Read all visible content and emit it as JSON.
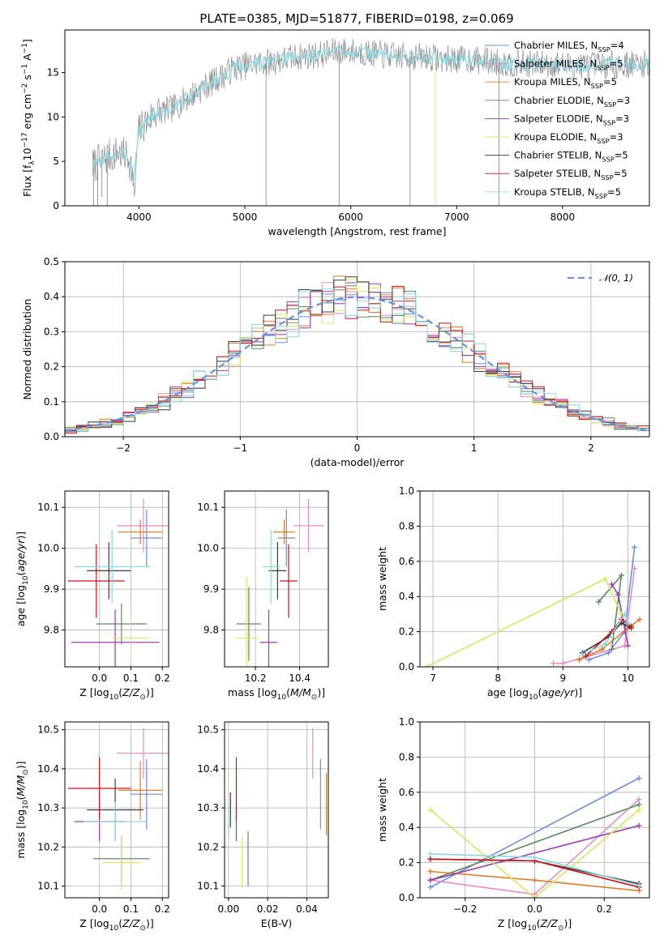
{
  "title": "PLATE=0385, MJD=51877, FIBERID=0198, z=0.069",
  "colors": {
    "blue": "#6a8fdc",
    "orange": "#e07b2a",
    "green": "#5a8a5e",
    "purple": "#9b3bb0",
    "yellow": "#d4e860",
    "black": "#3a3a3a",
    "red": "#c8141e",
    "cyan": "#8cd8e0",
    "pink": "#e88cc4",
    "spec": "#7f7f7f",
    "grid": "#b0b0b0"
  },
  "models": [
    {
      "name": "Chabrier MILES",
      "n": "4",
      "color": "blue"
    },
    {
      "name": "Salpeter MILES",
      "n": "5",
      "color": "pink"
    },
    {
      "name": "Kroupa MILES",
      "n": "5",
      "color": "orange"
    },
    {
      "name": "Chabrier ELODIE",
      "n": "3",
      "color": "green"
    },
    {
      "name": "Salpeter ELODIE",
      "n": "3",
      "color": "purple"
    },
    {
      "name": "Kroupa ELODIE",
      "n": "3",
      "color": "yellow"
    },
    {
      "name": "Chabrier STELIB",
      "n": "5",
      "color": "black"
    },
    {
      "name": "Salpeter STELIB",
      "n": "5",
      "color": "red"
    },
    {
      "name": "Kroupa STELIB",
      "n": "5",
      "color": "cyan"
    }
  ],
  "legend_sub": "SSP",
  "legend_prefix": "N",
  "chart_data": [
    {
      "id": "spectrum",
      "type": "line",
      "xlabel": "wavelength [Angstrom, rest frame]",
      "ylabel": "Flux [f_λ 10^-17 erg cm^-2 s^-1 A^-1]",
      "xlim": [
        3300,
        8820
      ],
      "ylim": [
        0,
        19.8
      ],
      "xticks": [
        4000,
        5000,
        6000,
        7000,
        8000
      ],
      "yticks": [
        0,
        5,
        10,
        15
      ],
      "grid": false,
      "legend": "right",
      "continuum": [
        [
          3560,
          4.5
        ],
        [
          3700,
          5.5
        ],
        [
          3800,
          6.0
        ],
        [
          3900,
          5.5
        ],
        [
          3950,
          3.5
        ],
        [
          4000,
          8.5
        ],
        [
          4150,
          10.5
        ],
        [
          4300,
          10.8
        ],
        [
          4500,
          12.5
        ],
        [
          4700,
          14.0
        ],
        [
          4900,
          15.5
        ],
        [
          5100,
          16.0
        ],
        [
          5300,
          16.3
        ],
        [
          5500,
          16.8
        ],
        [
          5700,
          17.0
        ],
        [
          5900,
          17.5
        ],
        [
          6100,
          17.3
        ],
        [
          6300,
          17.0
        ],
        [
          6500,
          16.8
        ],
        [
          6700,
          16.8
        ],
        [
          6900,
          16.5
        ],
        [
          7100,
          16.5
        ],
        [
          7300,
          16.3
        ],
        [
          7500,
          16.0
        ],
        [
          7700,
          16.0
        ],
        [
          7900,
          15.9
        ],
        [
          8100,
          15.8
        ],
        [
          8300,
          15.8
        ],
        [
          8500,
          15.9
        ],
        [
          8800,
          16.0
        ]
      ]
    },
    {
      "id": "residuals",
      "type": "line",
      "xlabel": "(data-model)/error",
      "ylabel": "Normed distribution",
      "xlim": [
        -2.5,
        2.5
      ],
      "ylim": [
        0,
        0.5
      ],
      "xticks": [
        -2,
        -1,
        0,
        1,
        2
      ],
      "yticks": [
        0.0,
        0.1,
        0.2,
        0.3,
        0.4,
        0.5
      ],
      "grid": true,
      "legend": "top-right",
      "reference_label": "𝒩(0, 1)",
      "reference": "normal",
      "bin_width": 0.1
    },
    {
      "id": "age_vs_Z",
      "type": "scatter",
      "xlabel": "Z [log10(Z/Z_⊙)]",
      "ylabel": "age [log10(age/yr)]",
      "xlim": [
        -0.11,
        0.22
      ],
      "ylim": [
        9.71,
        10.14
      ],
      "xticks": [
        0.0,
        0.1,
        0.2
      ],
      "yticks": [
        9.8,
        9.9,
        10.0,
        10.1
      ],
      "grid": true,
      "points": [
        {
          "color": "blue",
          "x": 0.15,
          "y": 10.025,
          "ex": 0.05,
          "ey": 0.07
        },
        {
          "color": "pink",
          "x": 0.14,
          "y": 10.055,
          "ex": 0.085,
          "ey": 0.065
        },
        {
          "color": "orange",
          "x": 0.13,
          "y": 10.04,
          "ex": 0.07,
          "ey": 0.03
        },
        {
          "color": "green",
          "x": 0.07,
          "y": 9.815,
          "ex": 0.08,
          "ey": 0.05
        },
        {
          "color": "purple",
          "x": 0.05,
          "y": 9.77,
          "ex": 0.14,
          "ey": 0.08
        },
        {
          "color": "yellow",
          "x": 0.1,
          "y": 9.78,
          "ex": 0.06,
          "ey": 0.06
        },
        {
          "color": "black",
          "x": 0.03,
          "y": 9.945,
          "ex": 0.07,
          "ey": 0.07
        },
        {
          "color": "red",
          "x": -0.01,
          "y": 9.92,
          "ex": 0.09,
          "ey": 0.09
        },
        {
          "color": "cyan",
          "x": 0.04,
          "y": 9.955,
          "ex": 0.12,
          "ey": 0.09
        }
      ]
    },
    {
      "id": "age_vs_mass",
      "type": "scatter",
      "xlabel": "mass [log10(M/M_⊙)]",
      "ylabel": "",
      "xlim": [
        10.06,
        10.53
      ],
      "ylim": [
        9.71,
        10.14
      ],
      "xticks": [
        10.2,
        10.4
      ],
      "yticks": [
        9.8,
        9.9,
        10.0,
        10.1
      ],
      "grid": true,
      "points": [
        {
          "color": "blue",
          "x": 10.34,
          "y": 10.025,
          "ex": 0.04,
          "ey": 0.07
        },
        {
          "color": "pink",
          "x": 10.44,
          "y": 10.055,
          "ex": 0.07,
          "ey": 0.065
        },
        {
          "color": "orange",
          "x": 10.33,
          "y": 10.04,
          "ex": 0.05,
          "ey": 0.03
        },
        {
          "color": "green",
          "x": 10.17,
          "y": 9.815,
          "ex": 0.055,
          "ey": 0.09
        },
        {
          "color": "purple",
          "x": 10.26,
          "y": 9.77,
          "ex": 0.04,
          "ey": 0.08
        },
        {
          "color": "yellow",
          "x": 10.16,
          "y": 9.78,
          "ex": 0.05,
          "ey": 0.15
        },
        {
          "color": "black",
          "x": 10.3,
          "y": 9.945,
          "ex": 0.04,
          "ey": 0.07
        },
        {
          "color": "red",
          "x": 10.35,
          "y": 9.92,
          "ex": 0.04,
          "ey": 0.09
        },
        {
          "color": "cyan",
          "x": 10.27,
          "y": 9.955,
          "ex": 0.04,
          "ey": 0.09
        }
      ]
    },
    {
      "id": "weight_vs_age",
      "type": "line",
      "xlabel": "age [log10(age/yr)]",
      "ylabel": "mass weight",
      "xlim": [
        6.8,
        10.33
      ],
      "ylim": [
        0,
        1.0
      ],
      "xticks": [
        7,
        8,
        9,
        10
      ],
      "yticks": [
        0.0,
        0.2,
        0.4,
        0.6,
        0.8,
        1.0
      ],
      "grid": true,
      "series": [
        {
          "color": "blue",
          "x": [
            9.4,
            9.7,
            9.95,
            10.1
          ],
          "y": [
            0.04,
            0.08,
            0.2,
            0.68
          ]
        },
        {
          "color": "pink",
          "x": [
            8.85,
            9.0,
            9.95,
            10.1
          ],
          "y": [
            0.02,
            0.02,
            0.12,
            0.56
          ]
        },
        {
          "color": "orange",
          "x": [
            9.25,
            9.6,
            10.0,
            10.18
          ],
          "y": [
            0.04,
            0.1,
            0.22,
            0.27
          ]
        },
        {
          "color": "green",
          "x": [
            9.55,
            9.9,
            9.75
          ],
          "y": [
            0.37,
            0.52,
            0.1
          ]
        },
        {
          "color": "purple",
          "x": [
            9.75,
            9.85,
            10.0
          ],
          "y": [
            0.47,
            0.41,
            0.12
          ]
        },
        {
          "color": "yellow",
          "x": [
            6.9,
            9.65,
            9.9
          ],
          "y": [
            0.0,
            0.5,
            0.3
          ]
        },
        {
          "color": "black",
          "x": [
            9.3,
            9.7,
            9.9,
            10.05
          ],
          "y": [
            0.08,
            0.17,
            0.25,
            0.22
          ]
        },
        {
          "color": "red",
          "x": [
            9.35,
            9.75,
            9.9,
            10.05
          ],
          "y": [
            0.06,
            0.2,
            0.27,
            0.23
          ]
        },
        {
          "color": "cyan",
          "x": [
            9.3,
            9.65,
            9.95,
            10.0
          ],
          "y": [
            0.07,
            0.13,
            0.3,
            0.25
          ]
        }
      ]
    },
    {
      "id": "mass_vs_Z",
      "type": "scatter",
      "xlabel": "Z [log10(Z/Z_⊙)]",
      "ylabel": "mass [log10(M/M_⊙)]",
      "xlim": [
        -0.11,
        0.22
      ],
      "ylim": [
        10.07,
        10.52
      ],
      "xticks": [
        0.0,
        0.1,
        0.2
      ],
      "yticks": [
        10.1,
        10.2,
        10.3,
        10.4,
        10.5
      ],
      "grid": true,
      "points": [
        {
          "color": "blue",
          "x": 0.15,
          "y": 10.335,
          "ex": 0.05,
          "ey": 0.09
        },
        {
          "color": "pink",
          "x": 0.14,
          "y": 10.44,
          "ex": 0.085,
          "ey": 0.065
        },
        {
          "color": "orange",
          "x": 0.13,
          "y": 10.345,
          "ex": 0.07,
          "ey": 0.075
        },
        {
          "color": "green",
          "x": 0.07,
          "y": 10.17,
          "ex": 0.09,
          "ey": 0.06
        },
        {
          "color": "purple",
          "x": 0.0,
          "y": 10.265,
          "ex": 0.08,
          "ey": 0.05
        },
        {
          "color": "yellow",
          "x": 0.07,
          "y": 10.16,
          "ex": 0.06,
          "ey": 0.07
        },
        {
          "color": "black",
          "x": 0.05,
          "y": 10.295,
          "ex": 0.09,
          "ey": 0.08
        },
        {
          "color": "red",
          "x": 0.0,
          "y": 10.35,
          "ex": 0.1,
          "ey": 0.08
        },
        {
          "color": "cyan",
          "x": 0.05,
          "y": 10.265,
          "ex": 0.1,
          "ey": 0.05
        }
      ]
    },
    {
      "id": "mass_vs_EBV",
      "type": "scatter",
      "xlabel": "E(B-V)",
      "ylabel": "",
      "xlim": [
        -0.002,
        0.051
      ],
      "ylim": [
        10.07,
        10.52
      ],
      "xticks": [
        0.0,
        0.02,
        0.04
      ],
      "yticks": [
        10.1,
        10.2,
        10.3,
        10.4,
        10.5
      ],
      "grid": true,
      "points": [
        {
          "color": "blue",
          "x": 0.047,
          "y": 10.335,
          "ex": 0,
          "ey": 0.09
        },
        {
          "color": "pink",
          "x": 0.043,
          "y": 10.44,
          "ex": 0,
          "ey": 0.065
        },
        {
          "color": "orange",
          "x": 0.05,
          "y": 10.31,
          "ex": 0,
          "ey": 0.08
        },
        {
          "color": "green",
          "x": 0.01,
          "y": 10.17,
          "ex": 0,
          "ey": 0.07
        },
        {
          "color": "purple",
          "x": 0.004,
          "y": 10.265,
          "ex": 0,
          "ey": 0.05
        },
        {
          "color": "yellow",
          "x": 0.007,
          "y": 10.16,
          "ex": 0,
          "ey": 0.065
        },
        {
          "color": "black",
          "x": 0.001,
          "y": 10.295,
          "ex": 0,
          "ey": 0.045
        },
        {
          "color": "red",
          "x": 0.004,
          "y": 10.35,
          "ex": 0,
          "ey": 0.08
        },
        {
          "color": "cyan",
          "x": 0.0,
          "y": 10.265,
          "ex": 0,
          "ey": 0.04
        }
      ]
    },
    {
      "id": "weight_vs_Z",
      "type": "line",
      "xlabel": "Z [log10(Z/Z_⊙)]",
      "ylabel": "mass weight",
      "xlim": [
        -0.33,
        0.33
      ],
      "ylim": [
        0,
        1.0
      ],
      "xticks": [
        -0.2,
        0.0,
        0.2
      ],
      "yticks": [
        0.0,
        0.2,
        0.4,
        0.6,
        0.8,
        1.0
      ],
      "grid": true,
      "series": [
        {
          "color": "blue",
          "x": [
            -0.3,
            0.3
          ],
          "y": [
            0.06,
            0.68
          ]
        },
        {
          "color": "pink",
          "x": [
            -0.3,
            0.0,
            0.3
          ],
          "y": [
            0.1,
            0.02,
            0.56
          ]
        },
        {
          "color": "orange",
          "x": [
            -0.3,
            0.0,
            0.3
          ],
          "y": [
            0.15,
            0.1,
            0.04
          ]
        },
        {
          "color": "green",
          "x": [
            -0.3,
            0.3
          ],
          "y": [
            0.1,
            0.53
          ]
        },
        {
          "color": "purple",
          "x": [
            -0.3,
            0.3
          ],
          "y": [
            0.1,
            0.41
          ]
        },
        {
          "color": "yellow",
          "x": [
            -0.3,
            0.0,
            0.3
          ],
          "y": [
            0.5,
            0.0,
            0.5
          ]
        },
        {
          "color": "black",
          "x": [
            -0.3,
            0.0,
            0.3
          ],
          "y": [
            0.22,
            0.21,
            0.08
          ]
        },
        {
          "color": "red",
          "x": [
            -0.3,
            0.0,
            0.3
          ],
          "y": [
            0.22,
            0.21,
            0.06
          ]
        },
        {
          "color": "cyan",
          "x": [
            -0.3,
            0.0,
            0.3
          ],
          "y": [
            0.25,
            0.23,
            0.07
          ]
        }
      ]
    }
  ]
}
